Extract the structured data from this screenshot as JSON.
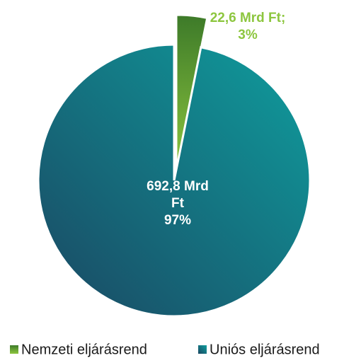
{
  "chart_data": {
    "type": "pie",
    "categories": [
      "Nemzeti eljárásrend",
      "Uniós eljárásrend"
    ],
    "values": [
      22.6,
      692.8
    ],
    "value_labels": [
      [
        "22,6 Mrd Ft;",
        "3%"
      ],
      [
        "692,8 Mrd",
        "Ft",
        "97%"
      ]
    ],
    "colors": [
      [
        "#3d7a29",
        "#8dc63f"
      ],
      [
        "#0f9e9e",
        "#1a4762"
      ]
    ],
    "label_colors": [
      "#8dc63f",
      "#ffffff"
    ],
    "legend": "bottom"
  }
}
